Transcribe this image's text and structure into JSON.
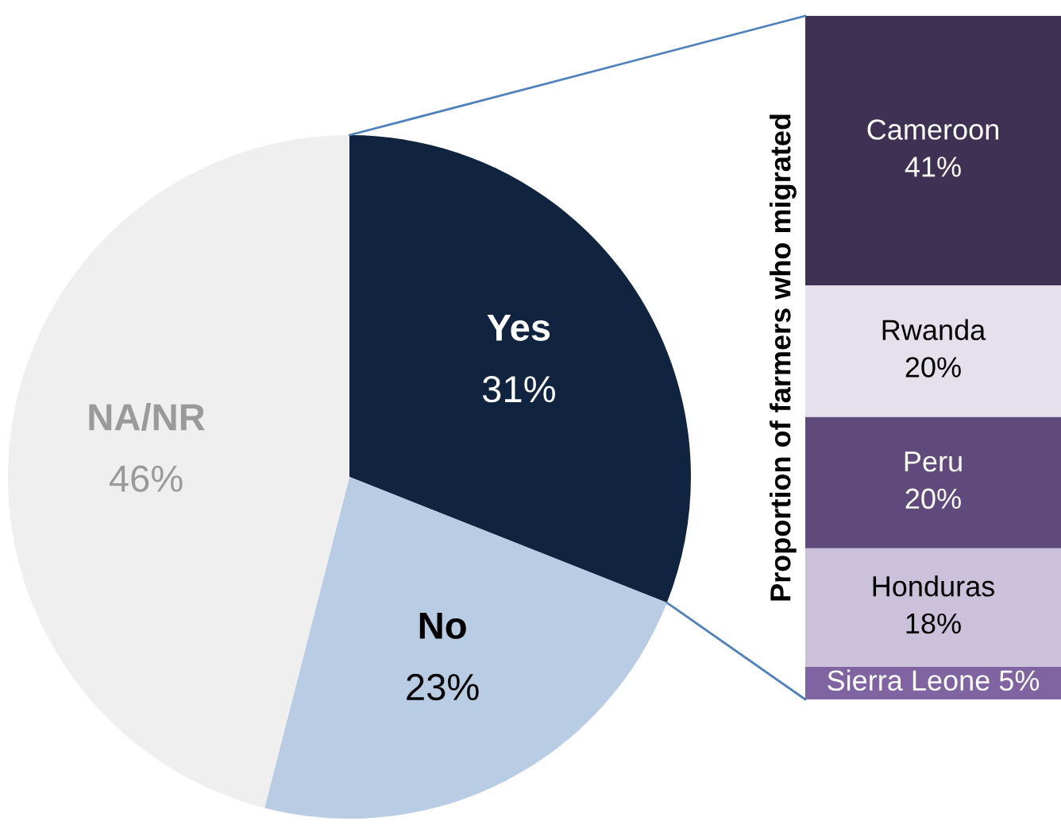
{
  "chart_data": [
    {
      "type": "pie",
      "categories": [
        "Yes",
        "No",
        "NA/NR"
      ],
      "values": [
        31,
        23,
        46
      ],
      "colors": [
        "#10233f",
        "#b8cce4",
        "#efefef"
      ],
      "value_labels": [
        "31%",
        "23%",
        "46%"
      ],
      "legend": false
    },
    {
      "type": "bar",
      "stacked": true,
      "categories": [
        null
      ],
      "ylabel": "Proportion of farmers who migrated",
      "legend": false,
      "series": [
        {
          "name": "Sierra Leone",
          "color": "#8064a2",
          "values": [
            5
          ],
          "value_labels": [
            "5%"
          ]
        },
        {
          "name": "Honduras",
          "color": "#ccc1da",
          "values": [
            18
          ],
          "value_labels": [
            "18%"
          ]
        },
        {
          "name": "Peru",
          "color": "#604a7b",
          "values": [
            20
          ],
          "value_labels": [
            "20%"
          ]
        },
        {
          "name": "Rwanda",
          "color": "#e6e0ec",
          "values": [
            20
          ],
          "value_labels": [
            "20%"
          ]
        },
        {
          "name": "Cameroon",
          "color": "#3f3154",
          "values": [
            41
          ],
          "value_labels": [
            "41%"
          ]
        }
      ]
    }
  ]
}
